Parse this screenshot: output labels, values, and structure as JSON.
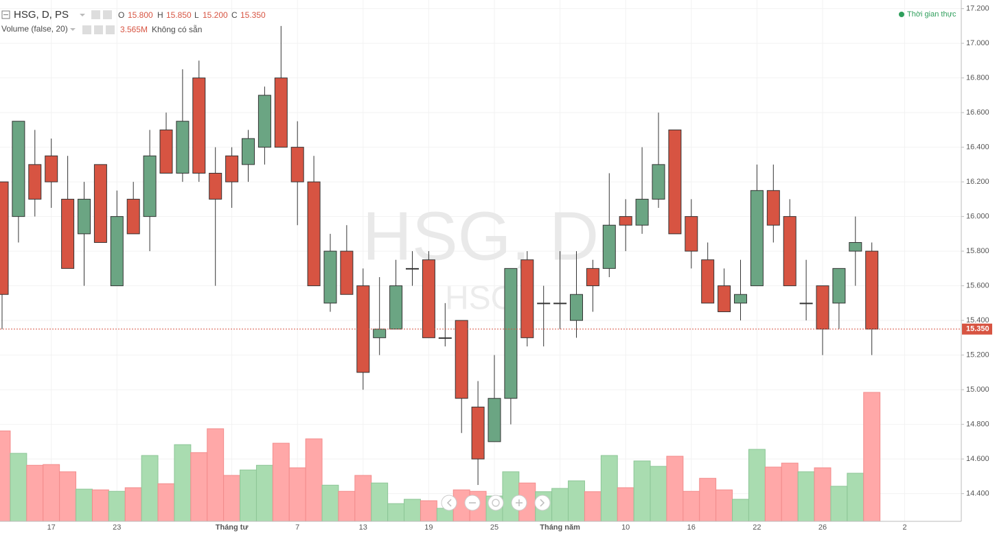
{
  "chart_data": {
    "type": "candlestick",
    "symbol_title": "HSG, D, PS",
    "ohlc_labels": {
      "open": "O",
      "open_value": "15.800",
      "high": "H",
      "high_value": "15.850",
      "low": "L",
      "low_value": "15.200",
      "close": "C",
      "close_value": "15.350"
    },
    "volume_title": "Volume (false, 20)",
    "volume_label": "3.565M",
    "volume_note": "Không có sẵn",
    "realtime_label": "Thời gian thực",
    "watermark": "HSG, D",
    "watermark_small": "HSG",
    "last_price": {
      "value": 15.35,
      "label": "15.350"
    },
    "categories": [
      null,
      null,
      null,
      "17",
      null,
      null,
      null,
      "23",
      null,
      null,
      null,
      null,
      null,
      null,
      "Tháng tư",
      null,
      null,
      null,
      "7",
      null,
      null,
      null,
      "13",
      null,
      null,
      null,
      "19",
      null,
      null,
      null,
      "25",
      null,
      null,
      null,
      "Tháng năm",
      null,
      null,
      null,
      "10",
      null,
      null,
      null,
      "16",
      null,
      null,
      null,
      "22",
      null,
      null,
      null,
      "26",
      null,
      null,
      null,
      null,
      "2"
    ],
    "open": [
      16.2,
      16.0,
      16.3,
      16.35,
      16.1,
      15.9,
      16.3,
      15.6,
      16.1,
      16.0,
      16.5,
      16.25,
      16.8,
      16.25,
      16.35,
      16.3,
      16.4,
      16.8,
      16.4,
      16.2,
      15.5,
      15.8,
      15.6,
      15.3,
      15.35,
      15.7,
      15.75,
      15.3,
      15.4,
      14.9,
      14.7,
      14.95,
      15.75,
      15.5,
      15.5,
      15.4,
      15.7,
      15.7,
      16.0,
      15.95,
      16.1,
      16.5,
      16.0,
      15.75,
      15.6,
      15.5,
      15.6,
      16.15,
      16.0,
      15.5,
      15.6,
      15.5,
      15.8,
      15.8,
      null,
      null
    ],
    "high": [
      16.2,
      16.55,
      16.5,
      16.45,
      16.35,
      16.2,
      16.3,
      16.15,
      16.2,
      16.5,
      16.6,
      16.85,
      16.9,
      16.4,
      16.4,
      16.5,
      16.75,
      17.1,
      16.55,
      16.35,
      15.9,
      15.95,
      15.7,
      15.65,
      15.75,
      15.8,
      15.8,
      15.5,
      15.4,
      15.05,
      15.2,
      15.7,
      15.8,
      15.6,
      15.8,
      15.8,
      15.75,
      16.25,
      16.1,
      16.4,
      16.6,
      16.5,
      16.1,
      15.85,
      15.7,
      15.75,
      16.3,
      16.3,
      16.1,
      15.75,
      15.6,
      15.7,
      16.0,
      15.85,
      null,
      null
    ],
    "low": [
      15.35,
      15.85,
      16.0,
      16.05,
      15.7,
      15.6,
      15.85,
      15.6,
      15.9,
      15.8,
      16.25,
      16.2,
      16.2,
      15.6,
      16.05,
      16.2,
      16.3,
      16.4,
      15.95,
      15.6,
      15.45,
      15.55,
      15.0,
      15.2,
      15.35,
      15.6,
      15.3,
      15.25,
      14.75,
      14.45,
      14.7,
      14.8,
      15.25,
      15.25,
      15.35,
      15.3,
      15.45,
      15.65,
      15.8,
      15.9,
      16.05,
      15.9,
      15.7,
      15.5,
      15.45,
      15.4,
      15.6,
      15.85,
      15.6,
      15.4,
      15.2,
      15.35,
      15.6,
      15.2,
      null,
      null
    ],
    "close": [
      15.55,
      16.55,
      16.1,
      16.2,
      15.7,
      16.1,
      15.85,
      16.0,
      15.9,
      16.35,
      16.25,
      16.55,
      16.25,
      16.1,
      16.2,
      16.45,
      16.7,
      16.4,
      16.2,
      15.6,
      15.8,
      15.55,
      15.1,
      15.35,
      15.6,
      15.7,
      15.3,
      15.3,
      14.95,
      14.6,
      14.95,
      15.7,
      15.3,
      15.5,
      15.5,
      15.55,
      15.6,
      15.95,
      15.95,
      16.1,
      16.3,
      15.9,
      15.8,
      15.5,
      15.45,
      15.55,
      16.15,
      15.95,
      15.6,
      15.5,
      15.35,
      15.7,
      15.85,
      15.35,
      null,
      null
    ],
    "volume": [
      2.5,
      1.88,
      1.55,
      1.57,
      1.37,
      0.89,
      0.87,
      0.83,
      0.93,
      1.82,
      1.04,
      2.12,
      1.9,
      2.56,
      1.27,
      1.42,
      1.55,
      2.16,
      1.48,
      2.28,
      1.0,
      0.83,
      1.27,
      1.06,
      0.49,
      0.61,
      0.57,
      0.36,
      0.87,
      0.83,
      0.7,
      1.37,
      1.06,
      0.82,
      0.91,
      1.12,
      0.82,
      1.82,
      0.93,
      1.67,
      1.52,
      1.8,
      0.83,
      1.19,
      0.87,
      0.61,
      1.99,
      1.5,
      1.61,
      1.37,
      1.48,
      0.97,
      1.33,
      3.565,
      null,
      null
    ],
    "up_color": "#6ba583",
    "down_color": "#d75442",
    "volume_up_color": "#a9dcb0",
    "volume_down_color": "#ffa8a8",
    "ylim": [
      14.24,
      17.25
    ],
    "yticks": [
      {
        "value": 14.4,
        "label": "14.400"
      },
      {
        "value": 14.6,
        "label": "14.600"
      },
      {
        "value": 14.8,
        "label": "14.800"
      },
      {
        "value": 15.0,
        "label": "15.000"
      },
      {
        "value": 15.2,
        "label": "15.200"
      },
      {
        "value": 15.4,
        "label": "15.400"
      },
      {
        "value": 15.6,
        "label": "15.600"
      },
      {
        "value": 15.8,
        "label": "15.800"
      },
      {
        "value": 16.0,
        "label": "16.000"
      },
      {
        "value": 16.2,
        "label": "16.200"
      },
      {
        "value": 16.4,
        "label": "16.400"
      },
      {
        "value": 16.6,
        "label": "16.600"
      },
      {
        "value": 16.8,
        "label": "16.800"
      },
      {
        "value": 17.0,
        "label": "17.000"
      },
      {
        "value": 17.2,
        "label": "17.200"
      }
    ]
  }
}
